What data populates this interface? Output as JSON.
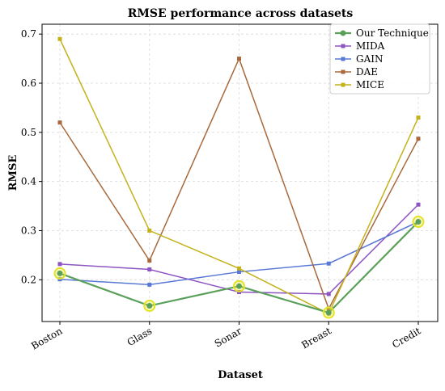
{
  "chart_data": {
    "type": "line",
    "title": "RMSE performance across datasets",
    "xlabel": "Dataset",
    "ylabel": "RMSE",
    "categories": [
      "Boston",
      "Glass",
      "Sonar",
      "Breast",
      "Credit"
    ],
    "yticks": [
      "0.2",
      "0.3",
      "0.4",
      "0.5",
      "0.6",
      "0.7"
    ],
    "ylim": [
      0.115,
      0.72
    ],
    "grid": true,
    "legend_position": "top-right",
    "series": [
      {
        "name": "Our Technique",
        "color": "#5aa05a",
        "marker": "circle",
        "highlight": true,
        "values": [
          0.213,
          0.147,
          0.187,
          0.133,
          0.318
        ]
      },
      {
        "name": "MIDA",
        "color": "#8e55c2",
        "marker": "square",
        "values": [
          0.232,
          0.221,
          0.175,
          0.171,
          0.353
        ]
      },
      {
        "name": "GAIN",
        "color": "#5a78d6",
        "marker": "square",
        "values": [
          0.201,
          0.19,
          0.216,
          0.233,
          0.318
        ]
      },
      {
        "name": "DAE",
        "color": "#a86a3c",
        "marker": "square",
        "values": [
          0.52,
          0.239,
          0.65,
          0.141,
          0.487
        ]
      },
      {
        "name": "MICE",
        "color": "#c4b21a",
        "marker": "square",
        "values": [
          0.69,
          0.3,
          0.223,
          0.131,
          0.53
        ]
      }
    ]
  }
}
